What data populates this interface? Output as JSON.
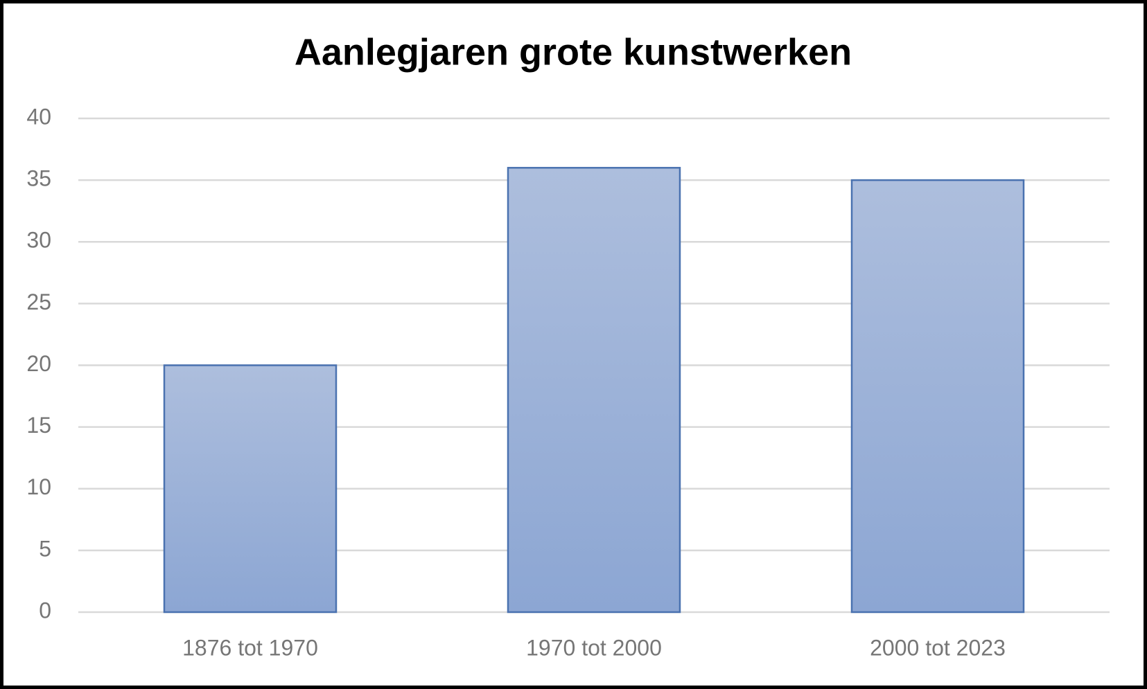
{
  "chart_data": {
    "type": "bar",
    "title": "Aanlegjaren grote kunstwerken",
    "categories": [
      "1876 tot 1970",
      "1970 tot 2000",
      "2000 tot 2023"
    ],
    "values": [
      20,
      36,
      35
    ],
    "color": "#4a72b0",
    "ylim": [
      0,
      40
    ],
    "yticks": [
      0,
      5,
      10,
      15,
      20,
      25,
      30,
      35,
      40
    ],
    "grid": true
  }
}
